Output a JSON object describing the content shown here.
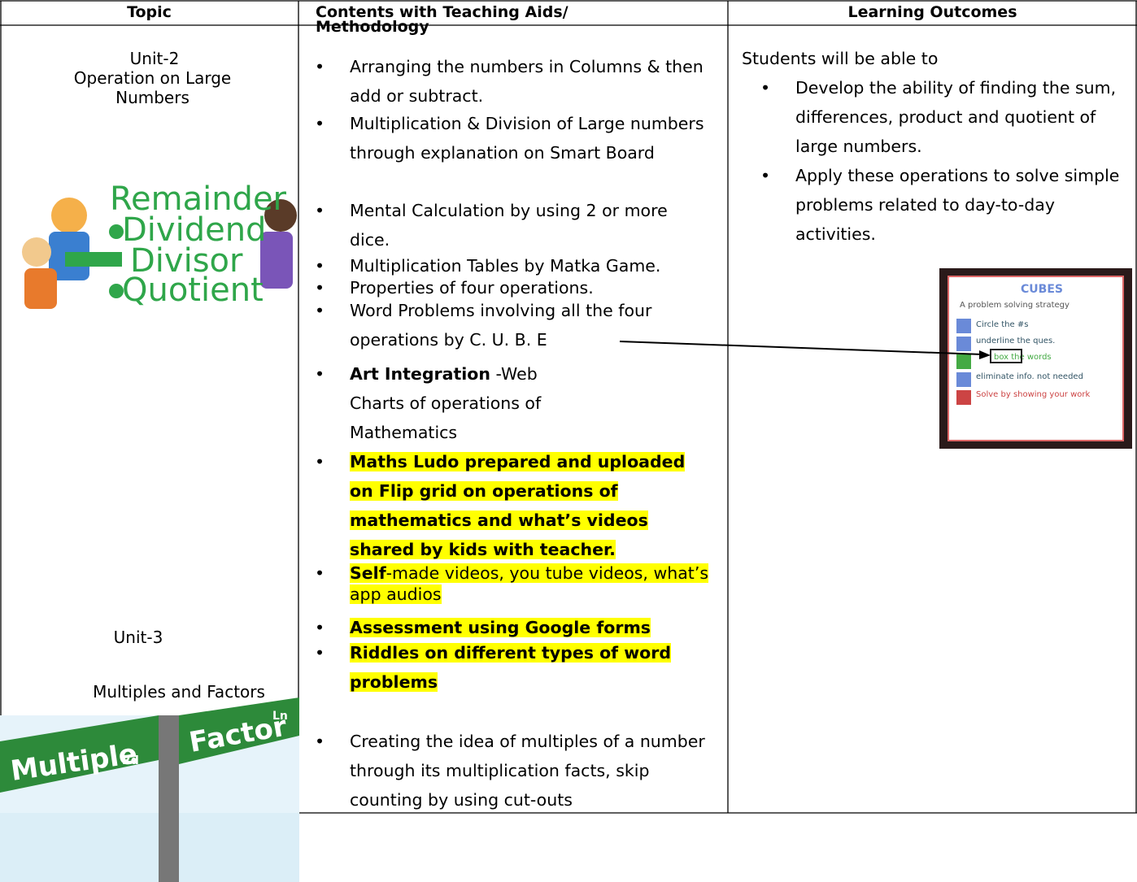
{
  "header": {
    "cells": [
      "Topic",
      "Contents with Teaching Aids/ Methodology",
      "Learning Outcomes"
    ]
  },
  "topic": {
    "unit2": "Unit-2",
    "unit2_title": "Operation on Large Numbers",
    "image_words": [
      "Remainder",
      "Dividend",
      "Divisor",
      "Quotient"
    ],
    "unit3": "Unit-3",
    "unit3_title": "Multiples and Factors",
    "sign_words": [
      "Multiple",
      "Rd",
      "Factor",
      "Ln"
    ]
  },
  "content": {
    "items": [
      {
        "parts": [
          {
            "text": "Arranging the numbers in Columns & then add or subtract.",
            "bold": false,
            "highlight": false
          }
        ]
      },
      {
        "parts": [
          {
            "text": "Multiplication & Division of Large numbers through explanation on Smart Board",
            "bold": false,
            "highlight": false
          }
        ]
      },
      {
        "parts": [
          {
            "text": "Mental Calculation by using 2 or more dice.",
            "bold": false,
            "highlight": false
          }
        ]
      },
      {
        "parts": [
          {
            "text": "Multiplication Tables by Matka Game.",
            "bold": false,
            "highlight": false
          }
        ]
      },
      {
        "parts": [
          {
            "text": "Properties of four operations.",
            "bold": false,
            "highlight": false
          }
        ]
      },
      {
        "parts": [
          {
            "text": "Word Problems involving all the four operations by C. U. B. E",
            "bold": false,
            "highlight": false
          }
        ]
      },
      {
        "parts": [
          {
            "text": "Art Integration",
            "bold": true,
            "highlight": false
          },
          {
            "text": " -Web Charts of operations of Mathematics",
            "bold": false,
            "highlight": false
          }
        ]
      },
      {
        "parts": [
          {
            "text": "Maths Ludo prepared and uploaded on Flip grid on operations of mathematics and what’s videos shared by kids with teacher.",
            "bold": true,
            "highlight": true
          }
        ]
      },
      {
        "parts": [
          {
            "text": "Self",
            "bold": true,
            "highlight": true
          },
          {
            "text": "-made videos, you tube videos, what’s app audios",
            "bold": false,
            "highlight": true
          }
        ]
      },
      {
        "parts": [
          {
            "text": "Assessment using Google forms",
            "bold": true,
            "highlight": true
          }
        ]
      },
      {
        "parts": [
          {
            "text": "Riddles on different types of word problems",
            "bold": true,
            "highlight": true
          }
        ]
      },
      {
        "parts": [
          {
            "text": "Creating the idea of multiples of a number through its multiplication facts, skip counting by using cut-outs",
            "bold": false,
            "highlight": false
          }
        ]
      }
    ]
  },
  "outcomes": {
    "intro": "Students will be able to",
    "items": [
      "Develop the ability of finding the sum, differences, product and quotient of large numbers.",
      "Apply these operations to solve simple problems related to day-to-day activities."
    ],
    "cubes_lines": [
      "CUBES",
      "A problem solving strategy",
      "Circle the #s",
      "underline the ques.",
      "box the words",
      "eliminate info. not needed",
      "Solve by showing your work"
    ]
  }
}
